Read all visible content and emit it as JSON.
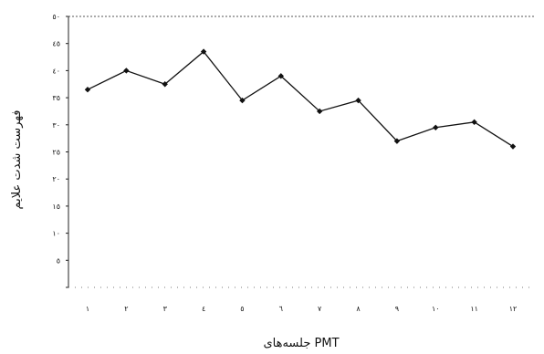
{
  "chart_data": {
    "type": "line",
    "xlabel": "جلسه‌های PMT",
    "ylabel": "فهرست شدت علایم",
    "x_ticks": [
      "۱",
      "۲",
      "۳",
      "٤",
      "٥",
      "٦",
      "۷",
      "۸",
      "۹",
      "۱۰",
      "۱۱",
      "۱۲"
    ],
    "y_ticks": [
      "",
      "٥",
      "۱۰",
      "۱٥",
      "۲۰",
      "۲٥",
      "۳۰",
      "۳٥",
      "٤۰",
      "٤٥",
      "٥۰"
    ],
    "ylim": [
      0,
      50
    ],
    "grid": false,
    "series": [
      {
        "values": [
          36.5,
          40,
          37.5,
          43.5,
          34.5,
          39,
          32.5,
          34.5,
          27,
          29.5,
          30.5,
          26
        ],
        "color": "#111111",
        "marker": "diamond"
      }
    ]
  }
}
